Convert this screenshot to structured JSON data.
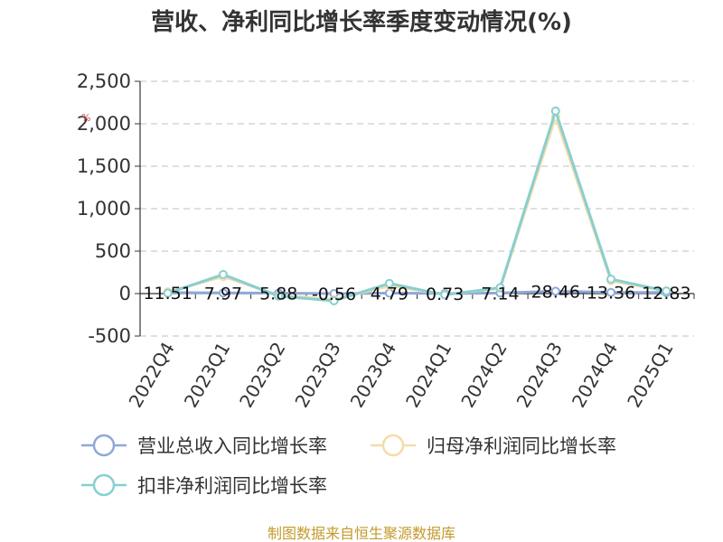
{
  "chart_data": {
    "type": "line",
    "title": "营收、净利同比增长率季度变动情况(%)",
    "unit_label": "%",
    "categories": [
      "2022Q4",
      "2023Q1",
      "2023Q2",
      "2023Q3",
      "2023Q4",
      "2024Q1",
      "2024Q2",
      "2024Q3",
      "2024Q4",
      "2025Q1"
    ],
    "ylim": [
      -500,
      2500
    ],
    "yticks": [
      -500,
      0,
      500,
      1000,
      1500,
      2000,
      2500
    ],
    "ytick_labels": [
      "-500",
      "0",
      "500",
      "1,000",
      "1,500",
      "2,000",
      "2,500"
    ],
    "grid": true,
    "legend_position": "bottom",
    "series": [
      {
        "name": "营业总收入同比增长率",
        "color": "#8fa8d8",
        "values": [
          11.51,
          7.97,
          5.88,
          -0.56,
          4.79,
          0.73,
          7.14,
          28.46,
          13.36,
          12.83
        ],
        "labels": [
          "11.51",
          "7.97",
          "5.88",
          "-0.56",
          "4.79",
          "0.73",
          "7.14",
          "28.46",
          "13.36",
          "12.83"
        ]
      },
      {
        "name": "归母净利润同比增长率",
        "color": "#f5dca8",
        "values": [
          20,
          200,
          -20,
          -70,
          90,
          -10,
          60,
          2080,
          150,
          30
        ]
      },
      {
        "name": "扣非净利润同比增长率",
        "color": "#88cfd0",
        "values": [
          5,
          225,
          -30,
          -85,
          120,
          -15,
          70,
          2150,
          170,
          30
        ]
      }
    ],
    "source": "制图数据来自恒生聚源数据库"
  }
}
